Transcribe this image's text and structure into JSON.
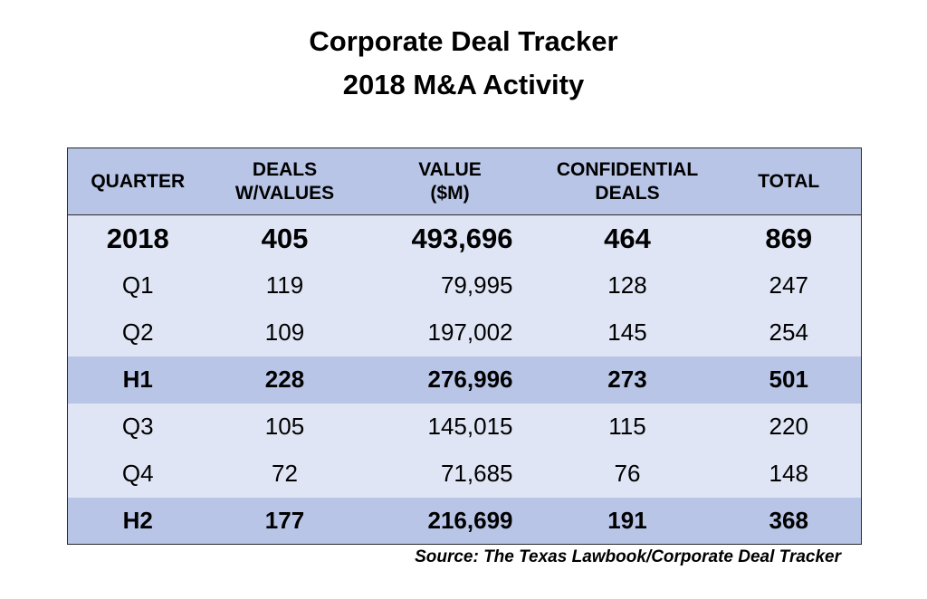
{
  "title": "Corporate Deal Tracker",
  "subtitle": "2018 M&A Activity",
  "source": "Source: The Texas Lawbook/Corporate Deal Tracker",
  "chart_data": {
    "type": "table",
    "columns": [
      {
        "line1": "QUARTER",
        "line2": ""
      },
      {
        "line1": "DEALS",
        "line2": "W/VALUES"
      },
      {
        "line1": "VALUE",
        "line2": "($M)"
      },
      {
        "line1": "CONFIDENTIAL",
        "line2": "DEALS"
      },
      {
        "line1": "TOTAL",
        "line2": ""
      }
    ],
    "rows": [
      {
        "label": "2018",
        "deals": "405",
        "value": "493,696",
        "confidential": "464",
        "total": "869",
        "style": "year",
        "shade": "light"
      },
      {
        "label": "Q1",
        "deals": "119",
        "value": "79,995",
        "confidential": "128",
        "total": "247",
        "style": "normal",
        "shade": "light"
      },
      {
        "label": "Q2",
        "deals": "109",
        "value": "197,002",
        "confidential": "145",
        "total": "254",
        "style": "normal",
        "shade": "light"
      },
      {
        "label": "H1",
        "deals": "228",
        "value": "276,996",
        "confidential": "273",
        "total": "501",
        "style": "bold",
        "shade": "dark"
      },
      {
        "label": "Q3",
        "deals": "105",
        "value": "145,015",
        "confidential": "115",
        "total": "220",
        "style": "normal",
        "shade": "light"
      },
      {
        "label": "Q4",
        "deals": "72",
        "value": "71,685",
        "confidential": "76",
        "total": "148",
        "style": "normal",
        "shade": "light"
      },
      {
        "label": "H2",
        "deals": "177",
        "value": "216,699",
        "confidential": "191",
        "total": "368",
        "style": "bold",
        "shade": "dark"
      }
    ],
    "colors": {
      "header": "#b8c5e6",
      "light_row": "#dfe5f4",
      "dark_row": "#b8c5e6"
    }
  }
}
